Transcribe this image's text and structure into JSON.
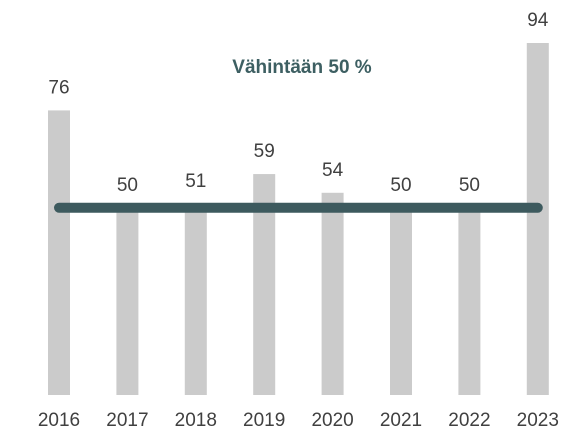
{
  "chart_data": {
    "type": "bar",
    "categories": [
      "2016",
      "2017",
      "2018",
      "2019",
      "2020",
      "2021",
      "2022",
      "2023"
    ],
    "values": [
      76,
      50,
      51,
      59,
      54,
      50,
      50,
      94
    ],
    "color": "#cbcbcb",
    "threshold": {
      "value": 50,
      "label": "Vähintään 50 %",
      "color": "#3d5a5e"
    }
  }
}
